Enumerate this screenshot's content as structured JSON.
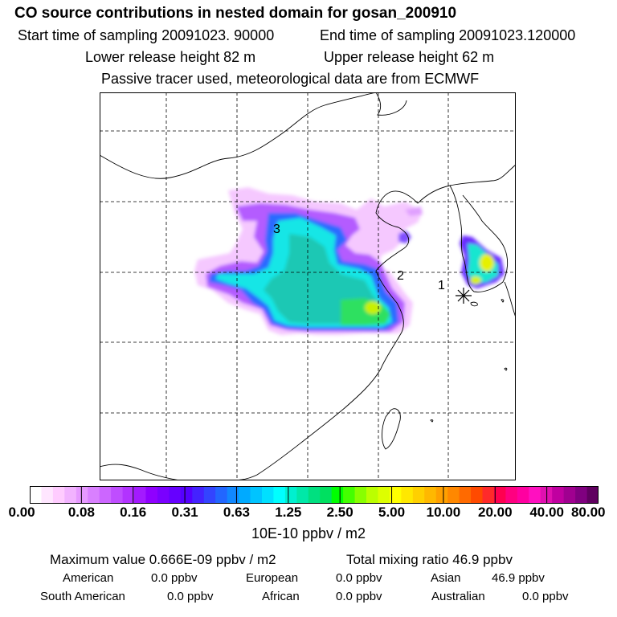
{
  "header": {
    "title": "CO  source contributions in nested domain for gosan_200910",
    "start_label": "Start time of sampling 20091023. 90000",
    "end_label": "End time of sampling 20091023.120000",
    "lower_label": "Lower release height   82 m",
    "upper_label": "Upper release height   62 m",
    "tracer_note": "Passive tracer used, meteorological data are from ECMWF"
  },
  "chart_data": {
    "type": "heatmap",
    "title": "CO  source contributions in nested domain for gosan_200910",
    "region_labels": [
      "1",
      "2",
      "3"
    ],
    "receptor_marker": "asterisk",
    "colorbar": {
      "unit": "10E-10 ppbv / m2",
      "tick_labels": [
        "0.00",
        "0.08",
        "0.16",
        "0.31",
        "0.63",
        "1.25",
        "2.50",
        "5.00",
        "10.00",
        "20.00",
        "40.00",
        "80.00"
      ],
      "colors": [
        "#ffffff",
        "#ffe6ff",
        "#ffccff",
        "#f2b3ff",
        "#e699ff",
        "#d980ff",
        "#cc66ff",
        "#bf4dff",
        "#b233ff",
        "#a31aff",
        "#8f00ff",
        "#7a00ff",
        "#6600ff",
        "#5500ff",
        "#4422ff",
        "#3344ff",
        "#2266ff",
        "#1188ff",
        "#00aaff",
        "#00c4ff",
        "#00e0ff",
        "#00ffff",
        "#00f0d0",
        "#00e8a8",
        "#00e080",
        "#00e060",
        "#00ff00",
        "#44ff00",
        "#88ff00",
        "#bbff00",
        "#ddff00",
        "#ffff00",
        "#ffe800",
        "#ffd000",
        "#ffb800",
        "#ffa000",
        "#ff8800",
        "#ff6a00",
        "#ff4a00",
        "#ff2a2a",
        "#ff0050",
        "#ff0080",
        "#ff00a0",
        "#ff10c0",
        "#e010b0",
        "#c000a0",
        "#a00090",
        "#800080",
        "#600060"
      ]
    },
    "max_value_text": "Maximum value  0.666E-09 ppbv / m2",
    "total_mixing_text": "Total mixing ratio       46.9 ppbv",
    "regions": [
      {
        "name": "American",
        "value": "0.0 ppbv"
      },
      {
        "name": "European",
        "value": "0.0 ppbv"
      },
      {
        "name": "Asian",
        "value": "46.9 ppbv"
      },
      {
        "name": "South American",
        "value": "0.0 ppbv"
      },
      {
        "name": "African",
        "value": "0.0 ppbv"
      },
      {
        "name": "Australian",
        "value": "0.0 ppbv"
      }
    ]
  }
}
